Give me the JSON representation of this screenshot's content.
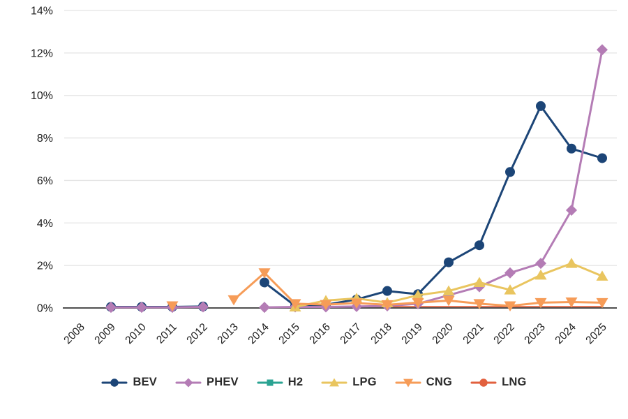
{
  "chart_data": {
    "type": "line",
    "title": "",
    "xlabel": "",
    "ylabel": "",
    "y_unit": "%",
    "ylim": [
      0,
      14
    ],
    "yticks": [
      0,
      2,
      4,
      6,
      8,
      10,
      12,
      14
    ],
    "ytick_labels": [
      "0%",
      "2%",
      "4%",
      "6%",
      "8%",
      "10%",
      "12%",
      "14%"
    ],
    "x_labels": [
      "2008",
      "2009",
      "2010",
      "2011",
      "2012",
      "2013",
      "2014",
      "2015",
      "2016",
      "2017",
      "2018",
      "2019",
      "2020",
      "2021",
      "2022",
      "2023",
      "2024",
      "2025"
    ],
    "grid": "horizontal",
    "legend_position": "bottom",
    "colors": {
      "grid": "#e4e4e4",
      "axis": "#4f4f4f",
      "tick_text": "#1c1c1c"
    },
    "series": [
      {
        "name": "BEV",
        "color": "#1c4577",
        "marker": "circle",
        "values": [
          null,
          0.05,
          0.05,
          0.05,
          0.07,
          null,
          1.2,
          0.1,
          0.15,
          0.4,
          0.8,
          0.65,
          2.15,
          2.95,
          6.4,
          9.5,
          7.5,
          7.05
        ]
      },
      {
        "name": "PHEV",
        "color": "#b47cb5",
        "marker": "diamond",
        "values": [
          null,
          0.03,
          0.03,
          0.03,
          0.05,
          null,
          0.03,
          0.05,
          0.05,
          0.07,
          0.1,
          0.2,
          0.6,
          1.0,
          1.65,
          2.1,
          4.6,
          12.15
        ]
      },
      {
        "name": "H2",
        "color": "#2aa392",
        "marker": "square",
        "on_axis": true,
        "values": [
          null,
          null,
          null,
          null,
          null,
          null,
          null,
          0.02,
          0.02,
          0.02,
          0.02,
          0.02,
          0.02,
          0.02,
          0.02,
          0.02,
          0.02,
          0.02
        ]
      },
      {
        "name": "LPG",
        "color": "#e9c55f",
        "marker": "triangle-up",
        "values": [
          null,
          null,
          null,
          null,
          null,
          null,
          null,
          0.05,
          0.35,
          0.45,
          0.25,
          0.6,
          0.8,
          1.2,
          0.85,
          1.55,
          2.1,
          1.5
        ]
      },
      {
        "name": "CNG",
        "color": "#f69c58",
        "marker": "triangle-down",
        "values": [
          null,
          null,
          null,
          0.1,
          null,
          0.38,
          1.65,
          0.2,
          0.16,
          0.23,
          0.15,
          0.25,
          0.35,
          0.2,
          0.1,
          0.25,
          0.28,
          0.25
        ]
      },
      {
        "name": "LNG",
        "color": "#e2603e",
        "marker": "circle",
        "on_axis": true,
        "values": [
          null,
          null,
          null,
          null,
          null,
          null,
          null,
          0.04,
          0.04,
          0.04,
          0.04,
          0.04,
          0.04,
          0.04,
          0.04,
          0.04,
          0.04,
          0.04
        ]
      }
    ]
  }
}
